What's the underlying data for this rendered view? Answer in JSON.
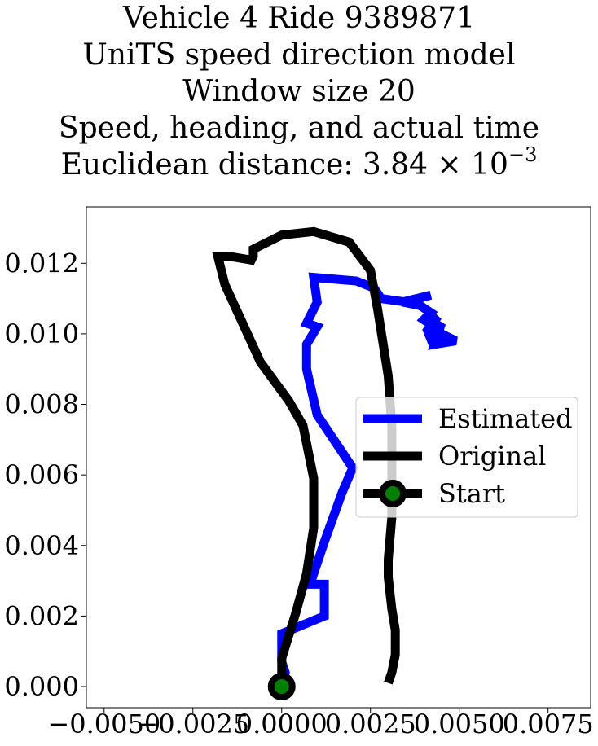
{
  "title": {
    "line1": "Vehicle 4 Ride 9389871",
    "line2": "UniTS speed direction model",
    "line3": "Window size 20",
    "line4": "Speed, heading, and actual time",
    "line5_prefix": "Euclidean distance: 3.84 × 10",
    "line5_exp": "−3"
  },
  "chart_data": {
    "type": "line",
    "xlim": [
      -0.0055,
      0.0087
    ],
    "ylim": [
      -0.0006,
      0.0136
    ],
    "xticks": [
      -0.005,
      -0.0025,
      0.0,
      0.0025,
      0.005,
      0.0075
    ],
    "xtick_labels": [
      "−0.0050",
      "−0.0025",
      "0.0000",
      "0.0025",
      "0.0050",
      "0.0075"
    ],
    "yticks": [
      0.0,
      0.002,
      0.004,
      0.006,
      0.008,
      0.01,
      0.012
    ],
    "ytick_labels": [
      "0.000",
      "0.002",
      "0.004",
      "0.006",
      "0.008",
      "0.010",
      "0.012"
    ],
    "grid": false,
    "legend_position": "center-right",
    "series": [
      {
        "name": "Estimated",
        "color": "#0000ff",
        "x": [
          0.0,
          0.0001,
          0.0,
          0.0,
          0.0012,
          0.0012,
          0.0008,
          0.0012,
          0.0017,
          0.002,
          0.001,
          0.0007,
          0.0007,
          0.001,
          0.0007,
          0.001,
          0.0009,
          0.0021,
          0.0026,
          0.0028,
          0.0035,
          0.0042,
          0.0034,
          0.0039,
          0.0042,
          0.004,
          0.0043,
          0.0041,
          0.0045,
          0.0043,
          0.0049,
          0.0043,
          0.0042,
          0.0044,
          0.0041,
          0.0043
        ],
        "y": [
          0.0,
          0.0004,
          0.0007,
          0.0015,
          0.002,
          0.0029,
          0.0029,
          0.0041,
          0.0055,
          0.0062,
          0.0077,
          0.009,
          0.0097,
          0.0102,
          0.0103,
          0.0109,
          0.0116,
          0.0115,
          0.0113,
          0.011,
          0.0109,
          0.0111,
          0.0109,
          0.0108,
          0.0106,
          0.0104,
          0.0102,
          0.0099,
          0.0103,
          0.0097,
          0.0098,
          0.0101,
          0.0103,
          0.0105,
          0.0101,
          0.0096
        ]
      },
      {
        "name": "Original",
        "color": "#000000",
        "x": [
          0.0,
          0.0,
          0.0004,
          0.0007,
          0.0009,
          0.0009,
          0.0006,
          0.0002,
          -0.0006,
          -0.0011,
          -0.0016,
          -0.0018,
          -0.0015,
          -0.0009,
          -0.0009,
          -0.0008,
          -0.0008,
          -0.0006,
          0.0,
          0.0009,
          0.0019,
          0.0025,
          0.0027,
          0.003,
          0.0031,
          0.0031,
          0.0031,
          0.003,
          0.003,
          0.0031,
          0.0032,
          0.0032,
          0.0031,
          0.003
        ],
        "y": [
          0.0,
          0.0008,
          0.0021,
          0.0032,
          0.0045,
          0.0059,
          0.0074,
          0.0081,
          0.0092,
          0.0103,
          0.0114,
          0.0122,
          0.0122,
          0.0121,
          0.012,
          0.0122,
          0.0124,
          0.0125,
          0.0128,
          0.0129,
          0.0126,
          0.0118,
          0.0107,
          0.0088,
          0.0074,
          0.0062,
          0.0048,
          0.0036,
          0.0031,
          0.0022,
          0.0016,
          0.0009,
          0.0004,
          0.0001
        ]
      }
    ],
    "start": {
      "name": "Start",
      "x": 0.0,
      "y": 0.0,
      "marker_face": "#008000",
      "marker_edge": "#000000"
    }
  }
}
